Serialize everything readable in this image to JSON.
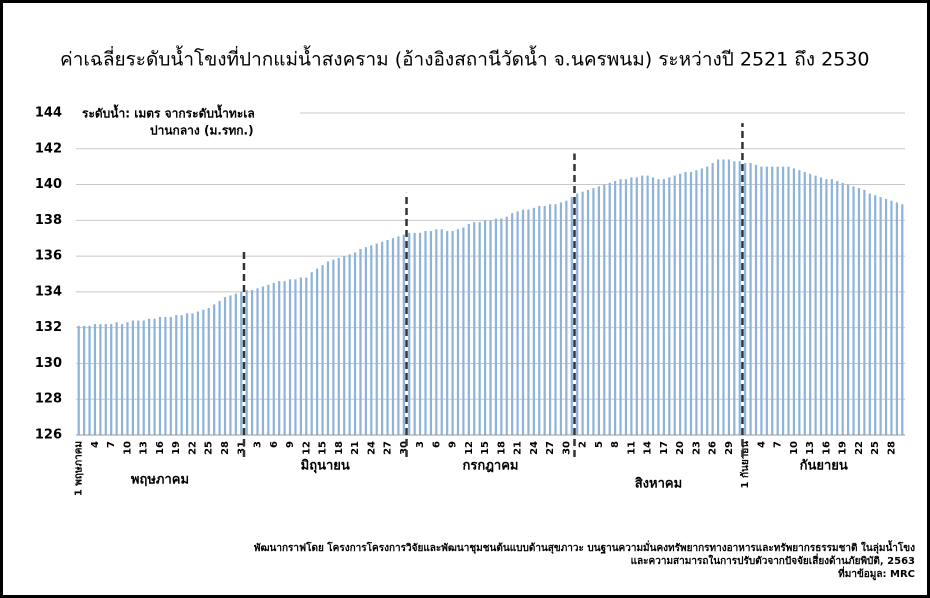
{
  "chart_data": {
    "type": "bar",
    "title": "ค่าเฉลี่ยระดับน้ำโขงที่ปากแม่น้ำสงคราม (อ้างอิงสถานีวัดน้ำ จ.นครพนม) ระหว่างปี 2521 ถึง 2530",
    "y_label": [
      "ระดับน้ำ: เมตร จากระดับน้ำทะเล",
      "ปานกลาง (ม.รทก.)"
    ],
    "month_labels": [
      "พฤษภาคม",
      "มิถุนายน",
      "กรกฎาคม",
      "สิงหาคม",
      "กันยายน"
    ],
    "footer": [
      "พัฒนากราฟโดย โครงการโครงการวิจัยและพัฒนาชุมชนต้นแบบด้านสุขภาวะ บนฐานความมั่นคงทรัพยากรทางอาหารและทรัพยากรธรรมชาติ ในลุ่มน้ำโขง",
      "และความสามารถในการปรับตัวจากปัจจัยเสี่ยงด้านภัยพิบัติ, 2563",
      "ที่มาข้อมูล: MRC"
    ],
    "categories": [
      "1 พฤษภาคม",
      null,
      null,
      "4",
      null,
      null,
      "7",
      null,
      null,
      "10",
      null,
      null,
      "13",
      null,
      null,
      "16",
      null,
      null,
      "19",
      null,
      null,
      "22",
      null,
      null,
      "25",
      null,
      null,
      "28",
      null,
      null,
      "31",
      null,
      null,
      "3",
      null,
      null,
      "6",
      null,
      null,
      "9",
      null,
      null,
      "12",
      null,
      null,
      "15",
      null,
      null,
      "18",
      null,
      null,
      "21",
      null,
      null,
      "24",
      null,
      null,
      "27",
      null,
      null,
      "30",
      null,
      null,
      "3",
      null,
      null,
      "6",
      null,
      null,
      "9",
      null,
      null,
      "12",
      null,
      null,
      "15",
      null,
      null,
      "18",
      null,
      null,
      "21",
      null,
      null,
      "24",
      null,
      null,
      "27",
      null,
      null,
      "30",
      null,
      null,
      "2",
      null,
      null,
      "5",
      null,
      null,
      "8",
      null,
      null,
      "11",
      null,
      null,
      "14",
      null,
      null,
      "17",
      null,
      null,
      "20",
      null,
      null,
      "23",
      null,
      null,
      "26",
      null,
      null,
      "29",
      null,
      null,
      "1 กันยายน",
      null,
      null,
      "4",
      null,
      null,
      "7",
      null,
      null,
      "10",
      null,
      null,
      "13",
      null,
      null,
      "16",
      null,
      null,
      "19",
      null,
      null,
      "22",
      null,
      null,
      "25",
      null,
      null,
      "28",
      null,
      null
    ],
    "values": [
      132.1,
      132.1,
      132.1,
      132.2,
      132.2,
      132.2,
      132.2,
      132.3,
      132.2,
      132.3,
      132.4,
      132.4,
      132.4,
      132.5,
      132.5,
      132.6,
      132.6,
      132.6,
      132.7,
      132.7,
      132.8,
      132.8,
      132.9,
      133.0,
      133.1,
      133.3,
      133.5,
      133.7,
      133.8,
      133.9,
      134.0,
      134.1,
      134.1,
      134.2,
      134.3,
      134.4,
      134.5,
      134.6,
      134.6,
      134.7,
      134.7,
      134.8,
      134.8,
      135.1,
      135.3,
      135.5,
      135.7,
      135.8,
      135.9,
      136.0,
      136.1,
      136.2,
      136.4,
      136.5,
      136.6,
      136.7,
      136.8,
      136.9,
      137.0,
      137.1,
      137.2,
      137.3,
      137.3,
      137.3,
      137.4,
      137.4,
      137.5,
      137.5,
      137.4,
      137.4,
      137.5,
      137.6,
      137.8,
      137.9,
      137.9,
      138.0,
      138.0,
      138.1,
      138.1,
      138.2,
      138.4,
      138.5,
      138.6,
      138.6,
      138.7,
      138.8,
      138.8,
      138.9,
      138.9,
      139.0,
      139.1,
      139.3,
      139.5,
      139.6,
      139.7,
      139.8,
      139.9,
      140.0,
      140.1,
      140.2,
      140.3,
      140.3,
      140.4,
      140.4,
      140.5,
      140.5,
      140.4,
      140.3,
      140.3,
      140.4,
      140.5,
      140.6,
      140.7,
      140.7,
      140.8,
      140.9,
      141.0,
      141.2,
      141.4,
      141.4,
      141.4,
      141.3,
      141.3,
      141.2,
      141.2,
      141.1,
      141.0,
      141.0,
      141.0,
      141.0,
      141.0,
      141.0,
      140.9,
      140.8,
      140.7,
      140.6,
      140.5,
      140.4,
      140.3,
      140.3,
      140.2,
      140.1,
      140.0,
      139.9,
      139.8,
      139.7,
      139.5,
      139.4,
      139.3,
      139.2,
      139.1,
      139.0,
      138.9
    ],
    "color": "#8db3da",
    "ylim": [
      126,
      144
    ],
    "yticks": [
      126,
      128,
      130,
      132,
      134,
      136,
      138,
      140,
      142,
      144
    ],
    "grid": true
  }
}
